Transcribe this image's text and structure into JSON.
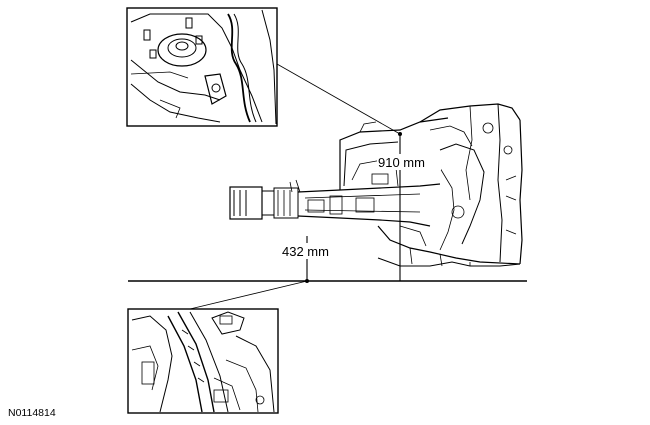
{
  "figure": {
    "dimension_upper": "910 mm",
    "dimension_lower": "432 mm",
    "reference_code": "N0114814",
    "inset_top_subject": "strut-tower-detail",
    "inset_bottom_subject": "frame-rail-detail"
  }
}
